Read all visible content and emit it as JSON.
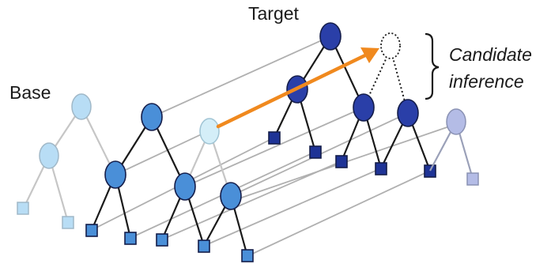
{
  "labels": {
    "target": "Target",
    "base": "Base",
    "candidate_line1": "Candidate",
    "candidate_line2": "inference"
  },
  "colors": {
    "faded_node_fill": "#b8ddf5",
    "faded_node_stroke": "#a0b8c8",
    "base_node_fill": "#4a8fd8",
    "target_node_fill": "#2a3fa8",
    "target_leaf_fill": "#1e3396",
    "node_stroke": "#141d4a",
    "faded_target_fill": "#b4bce6",
    "faded_target_stroke": "#8a92b4",
    "highlight_node_fill": "#d4eef8",
    "mapping_line": "#b0b0b0",
    "arrow": "#f0891e"
  },
  "icons": {
    "brace": "right-curly-brace"
  }
}
